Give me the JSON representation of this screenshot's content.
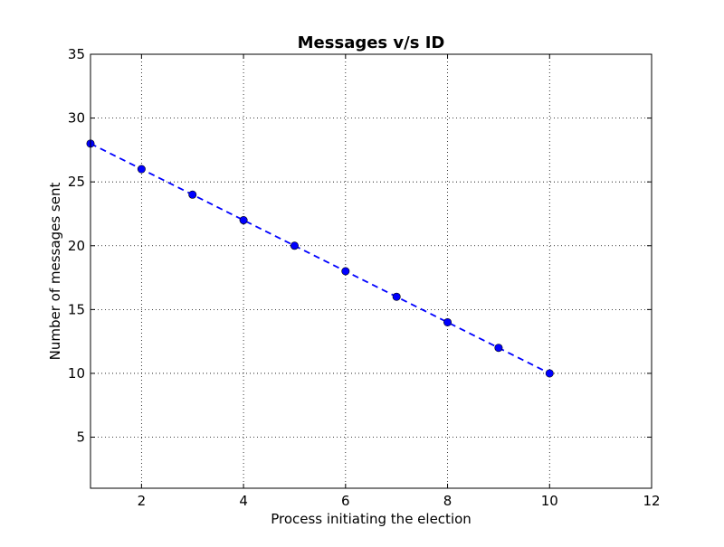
{
  "chart_data": {
    "type": "line",
    "title": "Messages v/s ID",
    "xlabel": "Process initiating the election",
    "ylabel": "Number of messages sent",
    "xlim": [
      1,
      12
    ],
    "ylim": [
      1,
      35
    ],
    "xticks": [
      2,
      4,
      6,
      8,
      10,
      12
    ],
    "yticks": [
      5,
      10,
      15,
      20,
      25,
      30,
      35
    ],
    "grid": true,
    "series": [
      {
        "x": [
          1,
          2,
          3,
          4,
          5,
          6,
          7,
          8,
          9,
          10
        ],
        "y": [
          28,
          26,
          24,
          22,
          20,
          18,
          16,
          14,
          12,
          10
        ],
        "line_style": "dashed",
        "marker": "circle",
        "color": "#0000ff"
      }
    ]
  }
}
